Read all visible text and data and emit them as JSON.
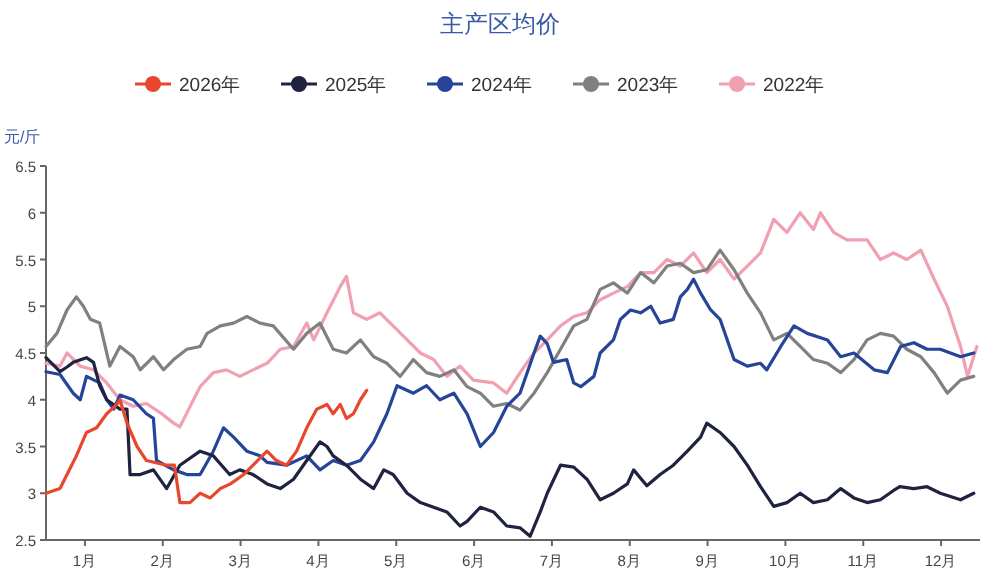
{
  "chart_data": {
    "type": "line",
    "title": "主产区均价",
    "ylabel": "元/斤",
    "legend": "top",
    "grid": false,
    "xlim": [
      0,
      12
    ],
    "xticks": [
      {
        "value": 0.5,
        "label": "1月"
      },
      {
        "value": 1.5,
        "label": "2月"
      },
      {
        "value": 2.5,
        "label": "3月"
      },
      {
        "value": 3.5,
        "label": "4月"
      },
      {
        "value": 4.5,
        "label": "5月"
      },
      {
        "value": 5.5,
        "label": "6月"
      },
      {
        "value": 6.5,
        "label": "7月"
      },
      {
        "value": 7.5,
        "label": "8月"
      },
      {
        "value": 8.5,
        "label": "9月"
      },
      {
        "value": 9.5,
        "label": "10月"
      },
      {
        "value": 10.5,
        "label": "11月"
      },
      {
        "value": 11.5,
        "label": "12月"
      }
    ],
    "ylim": [
      2.5,
      6.5
    ],
    "yticks": [
      2.5,
      3,
      3.5,
      4,
      4.5,
      5,
      5.5,
      6,
      6.5
    ],
    "series": [
      {
        "name": "2026年",
        "color": "#e8472e",
        "x": [
          0,
          0.18,
          0.27,
          0.39,
          0.52,
          0.65,
          0.78,
          0.91,
          0.95,
          1.04,
          1.17,
          1.29,
          1.55,
          1.65,
          1.72,
          1.85,
          1.98,
          2.11,
          2.24,
          2.37,
          2.54,
          2.66,
          2.84,
          2.96,
          3.09,
          3.22,
          3.35,
          3.48,
          3.61,
          3.69,
          3.78,
          3.86,
          3.95,
          4.04,
          4.12
        ],
        "values": [
          3.0,
          3.05,
          3.2,
          3.4,
          3.65,
          3.7,
          3.85,
          3.95,
          4.0,
          3.75,
          3.5,
          3.35,
          3.3,
          3.3,
          2.9,
          2.9,
          3.0,
          2.95,
          3.05,
          3.1,
          3.2,
          3.3,
          3.45,
          3.35,
          3.3,
          3.45,
          3.7,
          3.9,
          3.95,
          3.85,
          3.95,
          3.8,
          3.85,
          4.0,
          4.1
        ]
      },
      {
        "name": "2025年",
        "color": "#1f2340",
        "x": [
          0,
          0.18,
          0.27,
          0.35,
          0.52,
          0.61,
          0.69,
          0.78,
          0.95,
          1.04,
          1.08,
          1.21,
          1.38,
          1.55,
          1.72,
          1.98,
          2.15,
          2.36,
          2.49,
          2.66,
          2.84,
          3.01,
          3.18,
          3.35,
          3.52,
          3.61,
          3.69,
          3.86,
          4.04,
          4.21,
          4.34,
          4.46,
          4.64,
          4.81,
          4.98,
          5.15,
          5.32,
          5.41,
          5.58,
          5.75,
          5.92,
          6.09,
          6.22,
          6.35,
          6.44,
          6.61,
          6.78,
          6.95,
          7.12,
          7.29,
          7.47,
          7.55,
          7.72,
          7.89,
          8.06,
          8.24,
          8.41,
          8.49,
          8.66,
          8.84,
          9.01,
          9.18,
          9.35,
          9.52,
          9.69,
          9.86,
          10.04,
          10.21,
          10.38,
          10.55,
          10.72,
          10.89,
          10.97,
          11.15,
          11.32,
          11.49,
          11.75,
          11.92
        ],
        "values": [
          4.45,
          4.3,
          4.35,
          4.4,
          4.45,
          4.4,
          4.15,
          4.0,
          3.9,
          3.9,
          3.2,
          3.2,
          3.25,
          3.05,
          3.3,
          3.45,
          3.4,
          3.2,
          3.25,
          3.2,
          3.1,
          3.05,
          3.15,
          3.35,
          3.55,
          3.5,
          3.4,
          3.3,
          3.15,
          3.05,
          3.25,
          3.2,
          3.0,
          2.9,
          2.85,
          2.8,
          2.65,
          2.7,
          2.85,
          2.8,
          2.65,
          2.63,
          2.54,
          2.8,
          3.0,
          3.3,
          3.28,
          3.15,
          2.93,
          3.0,
          3.1,
          3.25,
          3.08,
          3.2,
          3.3,
          3.45,
          3.6,
          3.75,
          3.65,
          3.5,
          3.3,
          3.07,
          2.86,
          2.9,
          3.0,
          2.9,
          2.93,
          3.05,
          2.95,
          2.9,
          2.93,
          3.03,
          3.07,
          3.05,
          3.07,
          3.0,
          2.93,
          3.0
        ]
      },
      {
        "name": "2024年",
        "color": "#25449a",
        "x": [
          0,
          0.18,
          0.35,
          0.44,
          0.52,
          0.69,
          0.78,
          0.87,
          0.95,
          1.12,
          1.29,
          1.38,
          1.42,
          1.64,
          1.81,
          1.98,
          2.15,
          2.28,
          2.41,
          2.58,
          2.75,
          2.84,
          3.09,
          3.35,
          3.52,
          3.69,
          3.86,
          4.04,
          4.21,
          4.38,
          4.51,
          4.72,
          4.89,
          5.06,
          5.24,
          5.41,
          5.58,
          5.75,
          5.92,
          6.09,
          6.27,
          6.35,
          6.44,
          6.52,
          6.69,
          6.78,
          6.87,
          7.04,
          7.12,
          7.29,
          7.38,
          7.51,
          7.64,
          7.77,
          7.89,
          8.06,
          8.15,
          8.24,
          8.32,
          8.41,
          8.54,
          8.66,
          8.84,
          9.01,
          9.18,
          9.26,
          9.44,
          9.61,
          9.78,
          10.04,
          10.21,
          10.38,
          10.64,
          10.81,
          10.98,
          11.15,
          11.32,
          11.49,
          11.75,
          11.92
        ],
        "values": [
          4.3,
          4.27,
          4.07,
          4.0,
          4.25,
          4.18,
          4.0,
          3.9,
          4.05,
          4.0,
          3.85,
          3.8,
          3.35,
          3.25,
          3.2,
          3.2,
          3.45,
          3.7,
          3.6,
          3.45,
          3.4,
          3.33,
          3.3,
          3.4,
          3.25,
          3.35,
          3.3,
          3.35,
          3.55,
          3.85,
          4.15,
          4.07,
          4.15,
          4.0,
          4.07,
          3.85,
          3.5,
          3.65,
          3.93,
          4.07,
          4.5,
          4.68,
          4.6,
          4.4,
          4.43,
          4.18,
          4.14,
          4.25,
          4.5,
          4.64,
          4.86,
          4.96,
          4.93,
          5.0,
          4.82,
          4.86,
          5.1,
          5.18,
          5.29,
          5.14,
          4.96,
          4.86,
          4.43,
          4.36,
          4.39,
          4.32,
          4.57,
          4.79,
          4.71,
          4.64,
          4.46,
          4.5,
          4.32,
          4.29,
          4.57,
          4.61,
          4.54,
          4.54,
          4.46,
          4.5
        ]
      },
      {
        "name": "2023年",
        "color": "#808080",
        "x": [
          0,
          0.14,
          0.27,
          0.39,
          0.48,
          0.57,
          0.69,
          0.82,
          0.95,
          1.12,
          1.21,
          1.38,
          1.51,
          1.64,
          1.81,
          1.98,
          2.07,
          2.24,
          2.41,
          2.58,
          2.75,
          2.92,
          3.18,
          3.35,
          3.52,
          3.69,
          3.86,
          4.04,
          4.21,
          4.38,
          4.55,
          4.72,
          4.89,
          5.06,
          5.24,
          5.41,
          5.58,
          5.75,
          5.92,
          6.09,
          6.27,
          6.44,
          6.61,
          6.78,
          6.95,
          7.12,
          7.29,
          7.47,
          7.64,
          7.81,
          7.98,
          8.15,
          8.32,
          8.49,
          8.66,
          8.84,
          9.01,
          9.18,
          9.35,
          9.52,
          9.69,
          9.86,
          10.04,
          10.21,
          10.38,
          10.55,
          10.72,
          10.89,
          11.06,
          11.24,
          11.41,
          11.58,
          11.75,
          11.92
        ],
        "values": [
          4.57,
          4.71,
          4.96,
          5.1,
          5.0,
          4.86,
          4.82,
          4.36,
          4.57,
          4.46,
          4.32,
          4.46,
          4.32,
          4.43,
          4.54,
          4.57,
          4.71,
          4.79,
          4.82,
          4.89,
          4.82,
          4.79,
          4.54,
          4.71,
          4.82,
          4.54,
          4.5,
          4.64,
          4.46,
          4.39,
          4.25,
          4.43,
          4.29,
          4.25,
          4.32,
          4.14,
          4.07,
          3.93,
          3.96,
          3.89,
          4.07,
          4.29,
          4.54,
          4.79,
          4.86,
          5.18,
          5.25,
          5.14,
          5.36,
          5.25,
          5.43,
          5.46,
          5.36,
          5.39,
          5.6,
          5.39,
          5.14,
          4.93,
          4.64,
          4.71,
          4.57,
          4.43,
          4.39,
          4.29,
          4.43,
          4.64,
          4.71,
          4.68,
          4.54,
          4.46,
          4.29,
          4.07,
          4.21,
          4.25
        ]
      },
      {
        "name": "2022年",
        "color": "#f0a0b0",
        "x": [
          0,
          0.18,
          0.27,
          0.44,
          0.61,
          0.78,
          0.95,
          1.12,
          1.29,
          1.47,
          1.64,
          1.72,
          1.81,
          1.98,
          2.15,
          2.32,
          2.49,
          2.66,
          2.84,
          3.01,
          3.18,
          3.35,
          3.44,
          3.61,
          3.78,
          3.86,
          3.95,
          4.12,
          4.29,
          4.46,
          4.64,
          4.81,
          4.98,
          5.15,
          5.32,
          5.49,
          5.75,
          5.92,
          6.09,
          6.27,
          6.44,
          6.61,
          6.78,
          6.95,
          7.12,
          7.29,
          7.47,
          7.64,
          7.81,
          7.98,
          8.15,
          8.32,
          8.49,
          8.66,
          8.84,
          9.01,
          9.18,
          9.35,
          9.52,
          9.69,
          9.86,
          9.95,
          10.12,
          10.29,
          10.55,
          10.72,
          10.89,
          11.06,
          11.24,
          11.41,
          11.58,
          11.75,
          11.84,
          11.96
        ],
        "values": [
          4.39,
          4.36,
          4.5,
          4.36,
          4.32,
          4.18,
          4.0,
          3.93,
          3.96,
          3.86,
          3.75,
          3.71,
          3.86,
          4.14,
          4.29,
          4.32,
          4.25,
          4.32,
          4.39,
          4.54,
          4.57,
          4.82,
          4.64,
          4.93,
          5.21,
          5.32,
          4.93,
          4.86,
          4.93,
          4.79,
          4.64,
          4.5,
          4.43,
          4.25,
          4.36,
          4.21,
          4.18,
          4.07,
          4.29,
          4.5,
          4.64,
          4.79,
          4.89,
          4.93,
          5.07,
          5.14,
          5.21,
          5.36,
          5.36,
          5.5,
          5.43,
          5.57,
          5.36,
          5.5,
          5.29,
          5.43,
          5.57,
          5.93,
          5.79,
          6.0,
          5.82,
          6.0,
          5.79,
          5.71,
          5.71,
          5.5,
          5.57,
          5.5,
          5.6,
          5.29,
          5.0,
          4.57,
          4.25,
          4.57
        ]
      }
    ]
  }
}
